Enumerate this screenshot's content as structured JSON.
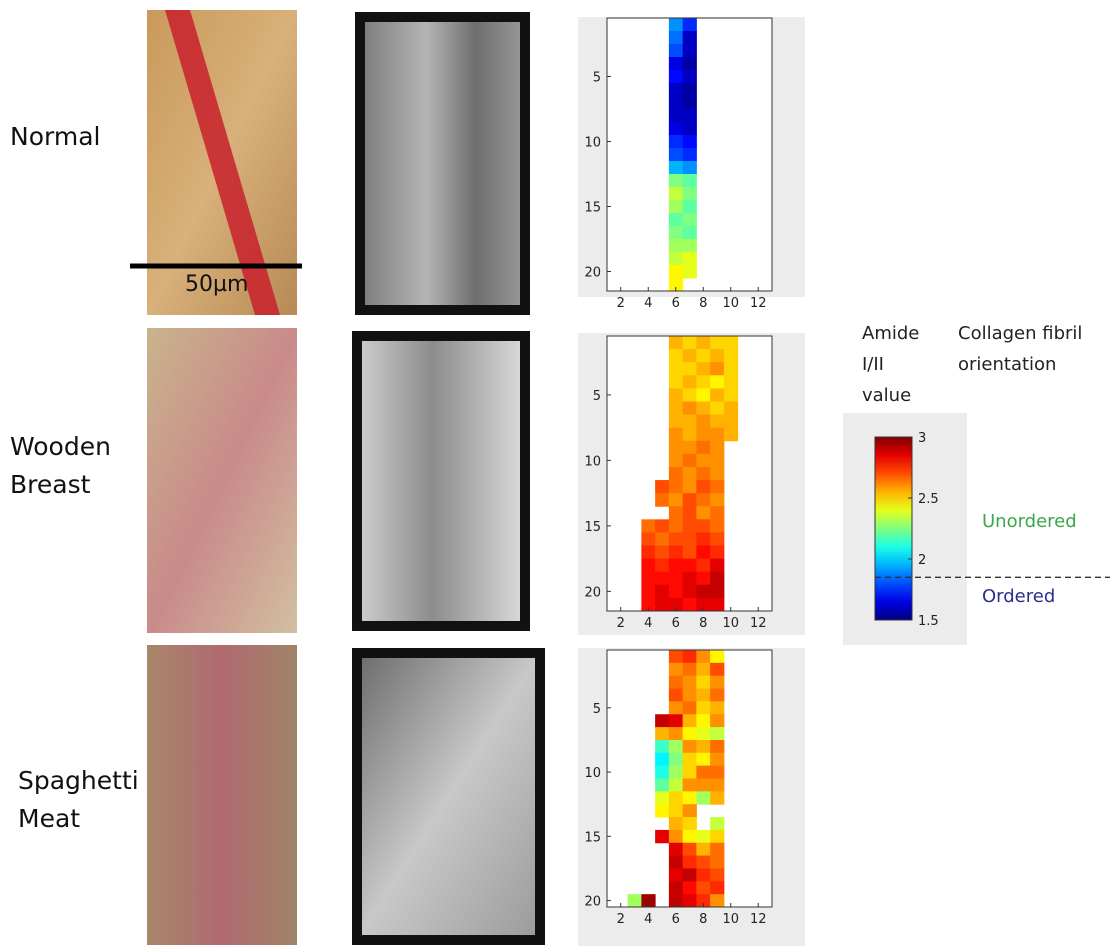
{
  "rows": [
    {
      "label": "Normal",
      "scale_bar": "50µm",
      "heatmap": {
        "x": [
          6,
          7
        ],
        "y": [
          1,
          2,
          3,
          4,
          5,
          6,
          7,
          8,
          9,
          10,
          11,
          12,
          13,
          14,
          15,
          16,
          17,
          18,
          19,
          20,
          21
        ],
        "values": [
          [
            1.9,
            1.75
          ],
          [
            1.85,
            1.6
          ],
          [
            1.8,
            1.6
          ],
          [
            1.65,
            1.55
          ],
          [
            1.7,
            1.6
          ],
          [
            1.6,
            1.55
          ],
          [
            1.6,
            1.55
          ],
          [
            1.6,
            1.6
          ],
          [
            1.65,
            1.6
          ],
          [
            1.75,
            1.7
          ],
          [
            1.8,
            1.75
          ],
          [
            1.95,
            1.9
          ],
          [
            2.25,
            2.2
          ],
          [
            2.35,
            2.25
          ],
          [
            2.3,
            2.2
          ],
          [
            2.2,
            2.25
          ],
          [
            2.25,
            2.2
          ],
          [
            2.3,
            2.3
          ],
          [
            2.35,
            2.4
          ],
          [
            2.45,
            2.4
          ],
          [
            2.45,
            null
          ]
        ],
        "xlim": [
          1,
          13
        ],
        "ylim": [
          0.5,
          21.5
        ],
        "xticks": [
          2,
          4,
          6,
          8,
          10,
          12
        ],
        "yticks": [
          5,
          10,
          15,
          20
        ]
      }
    },
    {
      "label": "Wooden Breast",
      "heatmap": {
        "x": [
          4,
          5,
          6,
          7,
          8,
          9,
          10
        ],
        "y": [
          1,
          2,
          3,
          4,
          5,
          6,
          7,
          8,
          9,
          10,
          11,
          12,
          13,
          14,
          15,
          16,
          17,
          18,
          19,
          20,
          21
        ],
        "values": [
          [
            null,
            null,
            2.55,
            2.5,
            2.55,
            2.5,
            2.5
          ],
          [
            null,
            null,
            2.5,
            2.55,
            2.5,
            2.55,
            2.5
          ],
          [
            null,
            null,
            2.5,
            2.5,
            2.55,
            2.6,
            2.5
          ],
          [
            null,
            null,
            2.5,
            2.55,
            2.5,
            2.45,
            2.5
          ],
          [
            null,
            null,
            2.55,
            2.5,
            2.45,
            2.55,
            2.5
          ],
          [
            null,
            null,
            2.55,
            2.6,
            2.55,
            2.5,
            2.55
          ],
          [
            null,
            null,
            2.55,
            2.55,
            2.6,
            2.55,
            2.55
          ],
          [
            null,
            null,
            2.6,
            2.55,
            2.6,
            2.6,
            2.55
          ],
          [
            null,
            null,
            2.6,
            2.6,
            2.65,
            2.6,
            null
          ],
          [
            null,
            null,
            2.6,
            2.65,
            2.6,
            2.6,
            null
          ],
          [
            null,
            null,
            2.65,
            2.6,
            2.65,
            2.6,
            null
          ],
          [
            null,
            2.7,
            2.65,
            2.6,
            2.7,
            2.65,
            null
          ],
          [
            null,
            2.65,
            2.6,
            2.7,
            2.65,
            2.6,
            null
          ],
          [
            null,
            null,
            2.65,
            2.7,
            2.6,
            2.65,
            null
          ],
          [
            2.65,
            2.7,
            2.65,
            2.7,
            2.7,
            2.65,
            null
          ],
          [
            2.7,
            2.65,
            2.7,
            2.7,
            2.75,
            2.7,
            null
          ],
          [
            2.75,
            2.7,
            2.75,
            2.7,
            2.8,
            2.75,
            null
          ],
          [
            2.8,
            2.75,
            2.8,
            2.8,
            2.75,
            2.85,
            null
          ],
          [
            2.8,
            2.8,
            2.8,
            2.85,
            2.8,
            2.9,
            null
          ],
          [
            2.8,
            2.85,
            2.8,
            2.85,
            2.9,
            2.9,
            null
          ],
          [
            2.8,
            2.85,
            2.85,
            2.8,
            2.85,
            2.85,
            null
          ]
        ],
        "xlim": [
          1,
          13
        ],
        "ylim": [
          0.5,
          21.5
        ],
        "xticks": [
          2,
          4,
          6,
          8,
          10,
          12
        ],
        "yticks": [
          5,
          10,
          15,
          20
        ]
      }
    },
    {
      "label": "Spaghetti Meat",
      "heatmap": {
        "x": [
          3,
          4,
          5,
          6,
          7,
          8,
          9
        ],
        "y": [
          1,
          2,
          3,
          4,
          5,
          6,
          7,
          8,
          9,
          10,
          11,
          12,
          13,
          14,
          15,
          16,
          17,
          18,
          19,
          20
        ],
        "values": [
          [
            null,
            null,
            null,
            2.7,
            2.75,
            2.6,
            2.45
          ],
          [
            null,
            null,
            null,
            2.6,
            2.65,
            2.55,
            2.7
          ],
          [
            null,
            null,
            null,
            2.65,
            2.6,
            2.5,
            2.6
          ],
          [
            null,
            null,
            null,
            2.7,
            2.6,
            2.55,
            2.65
          ],
          [
            null,
            null,
            null,
            2.6,
            2.65,
            2.5,
            2.55
          ],
          [
            null,
            null,
            2.9,
            2.85,
            2.55,
            2.45,
            2.6
          ],
          [
            null,
            null,
            2.55,
            2.6,
            2.45,
            2.4,
            2.35
          ],
          [
            null,
            null,
            2.15,
            2.3,
            2.6,
            2.55,
            2.65
          ],
          [
            null,
            null,
            2.05,
            2.25,
            2.5,
            2.45,
            2.6
          ],
          [
            null,
            null,
            2.1,
            2.3,
            2.5,
            2.65,
            2.65
          ],
          [
            null,
            null,
            2.2,
            2.35,
            2.6,
            2.6,
            2.6
          ],
          [
            null,
            null,
            2.4,
            2.5,
            2.45,
            2.3,
            2.55
          ],
          [
            null,
            null,
            2.45,
            2.5,
            2.6,
            null,
            null
          ],
          [
            null,
            null,
            null,
            2.55,
            2.5,
            null,
            2.35
          ],
          [
            null,
            null,
            2.85,
            2.6,
            2.45,
            2.4,
            2.5
          ],
          [
            null,
            null,
            null,
            2.85,
            2.7,
            2.55,
            2.65
          ],
          [
            null,
            null,
            null,
            2.9,
            2.75,
            2.7,
            2.65
          ],
          [
            null,
            null,
            null,
            2.85,
            2.9,
            2.75,
            2.7
          ],
          [
            null,
            null,
            null,
            2.9,
            2.8,
            2.7,
            2.75
          ],
          [
            2.3,
            2.95,
            null,
            2.9,
            2.85,
            2.75,
            2.6
          ]
        ],
        "xlim": [
          1,
          13
        ],
        "ylim": [
          0.5,
          20.5
        ],
        "xticks": [
          2,
          4,
          6,
          8,
          10,
          12
        ],
        "yticks": [
          5,
          10,
          15,
          20
        ]
      }
    }
  ],
  "colorbar": {
    "title": "Amide I/II value",
    "orientation_title": "Collagen fibril orientation",
    "lim": [
      1.5,
      3
    ],
    "ticks": [
      1.5,
      2,
      2.5,
      3
    ],
    "threshold": 1.85,
    "upper_label": "Unordered",
    "lower_label": "Ordered"
  }
}
